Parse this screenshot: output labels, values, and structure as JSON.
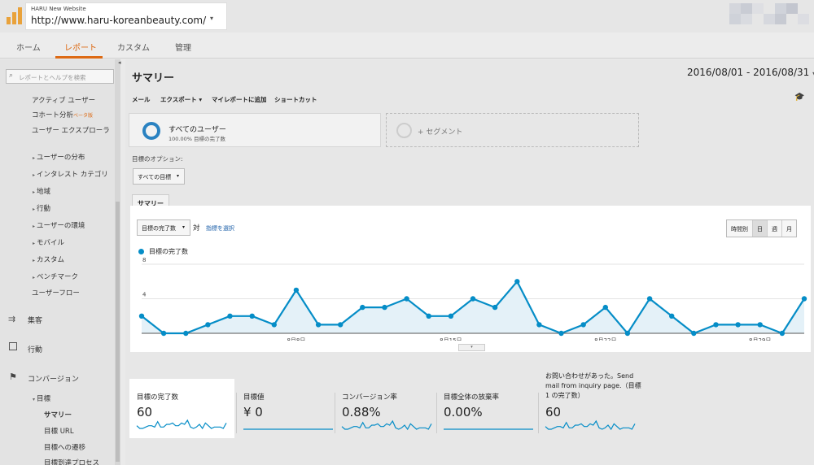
{
  "header": {
    "account_name": "HARU New Website",
    "property_url": "http://www.haru-koreanbeauty.com/",
    "caret": "▾"
  },
  "nav": {
    "tabs": [
      "ホーム",
      "レポート",
      "カスタム",
      "管理"
    ],
    "active": "レポート"
  },
  "sidebar": {
    "search_placeholder": "レポートとヘルプを検索",
    "items": {
      "active_users": "アクティブ ユーザー",
      "cohort": "コホート分析",
      "beta": "ベータ版",
      "explorer": "ユーザー エクスプローラ",
      "distribution": "ユーザーの分布",
      "interests": "インタレスト カテゴリ",
      "geo": "地域",
      "behavior_sub": "行動",
      "environment": "ユーザーの環境",
      "mobile": "モバイル",
      "custom": "カスタム",
      "benchmark": "ベンチマーク",
      "flow": "ユーザーフロー",
      "acquisition": "集客",
      "behavior": "行動",
      "conversions": "コンバージョン",
      "goals": "目標",
      "overview": "サマリー",
      "goal_urls": "目標 URL",
      "reverse_path": "目標への遷移",
      "funnel": "目標到達プロセス"
    }
  },
  "main": {
    "title": "サマリー",
    "date_range": "2016/08/01 - 2016/08/31",
    "toolbar": {
      "email": "メール",
      "export": "エクスポート ▾",
      "add_dashboard": "マイレポートに追加",
      "shortcut": "ショートカット"
    },
    "segment": {
      "name": "すべてのユーザー",
      "percent": "100.00% 目標の完了数",
      "add": "+ セグメント"
    },
    "goal_option_label": "目標のオプション:",
    "goal_option_value": "すべての目標",
    "summary_tab": "サマリー"
  },
  "chart_panel": {
    "metric_select": "目標の完了数",
    "vs": "対",
    "select_metric": "指標を選択",
    "granularity": [
      "時間別",
      "日",
      "週",
      "月"
    ],
    "granularity_selected": "日",
    "dropdown_caret": "▾"
  },
  "chart_data": {
    "type": "line",
    "title": "",
    "series": [
      {
        "name": "目標の完了数",
        "values": [
          2,
          0,
          0,
          1,
          2,
          2,
          1,
          5,
          1,
          1,
          3,
          3,
          4,
          2,
          2,
          4,
          3,
          6,
          1,
          0,
          1,
          3,
          0,
          4,
          2,
          0,
          1,
          1,
          1,
          0,
          4
        ]
      }
    ],
    "x": [
      "8/1",
      "8/2",
      "8/3",
      "8/4",
      "8/5",
      "8/6",
      "8/7",
      "8/8",
      "8/9",
      "8/10",
      "8/11",
      "8/12",
      "8/13",
      "8/14",
      "8/15",
      "8/16",
      "8/17",
      "8/18",
      "8/19",
      "8/20",
      "8/21",
      "8/22",
      "8/23",
      "8/24",
      "8/25",
      "8/26",
      "8/27",
      "8/28",
      "8/29",
      "8/30",
      "8/31"
    ],
    "x_tick_labels": [
      {
        "index": 7,
        "label": "8月8日"
      },
      {
        "index": 14,
        "label": "8月15日"
      },
      {
        "index": 21,
        "label": "8月22日"
      },
      {
        "index": 28,
        "label": "8月29日"
      }
    ],
    "x_start_label": "...",
    "y_ticks": [
      4,
      8
    ],
    "ylim": [
      0,
      8
    ],
    "color": "#058dc7",
    "fill": "#e4f1f8",
    "legend_position": "top-left"
  },
  "scorecards": [
    {
      "label": "目標の完了数",
      "value": "60"
    },
    {
      "label": "目標値",
      "value": "¥ 0"
    },
    {
      "label": "コンバージョン率",
      "value": "0.88%"
    },
    {
      "label": "目標全体の放棄率",
      "value": "0.00%"
    },
    {
      "label": "お問い合わせがあった。Send mail from inquiry page.（目標 1 の完了数）",
      "value": "60"
    }
  ]
}
